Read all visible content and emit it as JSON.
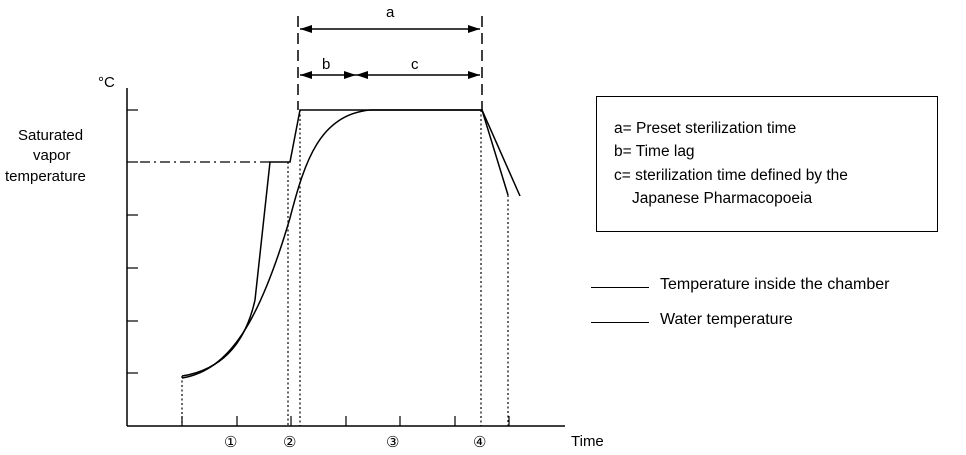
{
  "y_unit": "°C",
  "y_label_lines": [
    "Saturated",
    "vapor",
    "temperature"
  ],
  "x_label": "Time",
  "phases": [
    "①",
    "②",
    "③",
    "④"
  ],
  "intervals": {
    "a": "a",
    "b": "b",
    "c": "c"
  },
  "definitions": [
    "a= Preset sterilization time",
    "b= Time lag",
    "c= sterilization time defined by the",
    "Japanese Pharmacopoeia"
  ],
  "series": [
    {
      "name": "Temperature inside the chamber"
    },
    {
      "name": "Water temperature"
    }
  ]
}
